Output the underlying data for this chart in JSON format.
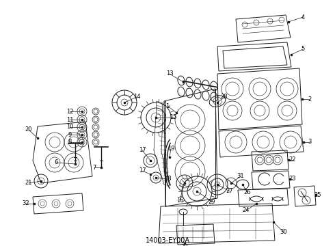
{
  "title": "14003-EY00A",
  "background_color": "#ffffff",
  "line_color": "#1a1a1a",
  "label_color": "#000000",
  "figsize": [
    4.9,
    3.6
  ],
  "dpi": 100,
  "label_fontsize": 6.0,
  "lw": 0.7
}
